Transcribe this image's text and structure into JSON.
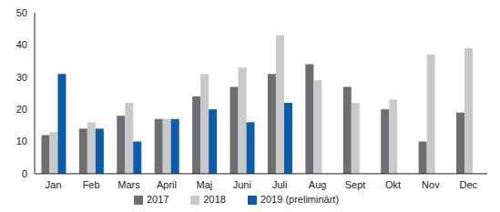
{
  "chart_data": {
    "type": "bar",
    "categories": [
      "Jan",
      "Feb",
      "Mars",
      "April",
      "Maj",
      "Juni",
      "Juli",
      "Aug",
      "Sept",
      "Okt",
      "Nov",
      "Dec"
    ],
    "series": [
      {
        "name": "2017",
        "color": "#6d6e71",
        "values": [
          12,
          14,
          18,
          17,
          24,
          27,
          31,
          34,
          27,
          20,
          10,
          19
        ]
      },
      {
        "name": "2018",
        "color": "#c8c9cb",
        "values": [
          13,
          16,
          22,
          17,
          31,
          33,
          43,
          29,
          22,
          23,
          37,
          39
        ]
      },
      {
        "name": "2019 (preliminärt)",
        "color": "#0b5cad",
        "values": [
          31,
          14,
          10,
          17,
          20,
          16,
          22,
          null,
          null,
          null,
          null,
          null
        ]
      }
    ],
    "ylim": [
      0,
      50
    ],
    "yticks": [
      0,
      10,
      20,
      30,
      40,
      50
    ],
    "grid": false,
    "legend": "bottom"
  }
}
